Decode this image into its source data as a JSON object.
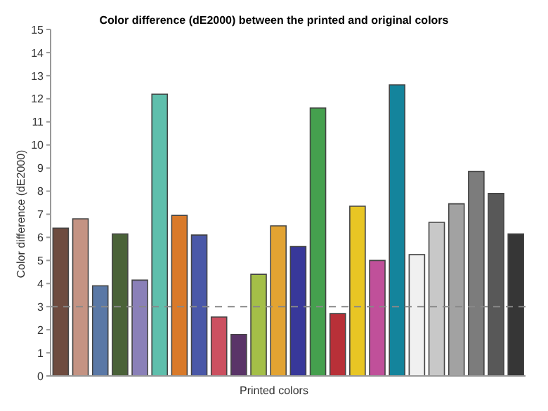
{
  "chart_data": {
    "type": "bar",
    "title": "Color difference (dE2000) between the printed and original colors",
    "xlabel": "Printed colors",
    "ylabel": "Color difference (dE2000)",
    "categories": [
      null,
      null,
      null,
      null,
      null,
      null,
      null,
      null,
      null,
      null,
      null,
      null,
      null,
      null,
      null,
      null,
      null,
      null,
      null,
      null,
      null,
      null,
      null,
      null
    ],
    "values": [
      6.4,
      6.8,
      3.9,
      6.15,
      4.15,
      12.2,
      6.95,
      6.1,
      2.55,
      1.8,
      4.4,
      6.5,
      5.6,
      11.6,
      2.7,
      7.35,
      5.0,
      12.6,
      5.25,
      6.65,
      7.45,
      8.85,
      7.9,
      6.15
    ],
    "colors": [
      "#6e4b3f",
      "#c49383",
      "#5a78a6",
      "#4a6238",
      "#8a80b8",
      "#5fbfac",
      "#d97a2a",
      "#4a58a8",
      "#cc5060",
      "#5a3468",
      "#a4bf48",
      "#e2a332",
      "#38389a",
      "#45a04e",
      "#b83038",
      "#e8c624",
      "#c0509a",
      "#14849c",
      "#f0f0f0",
      "#c8c8c8",
      "#a2a2a2",
      "#7c7c7c",
      "#585858",
      "#363636"
    ],
    "ylim": [
      0,
      15
    ],
    "yticks": [
      0,
      1,
      2,
      3,
      4,
      5,
      6,
      7,
      8,
      9,
      10,
      11,
      12,
      13,
      14,
      15
    ],
    "ref_lines": [
      {
        "axis": "y",
        "value": 3,
        "line_style": "dashed",
        "color": "#888888"
      }
    ]
  }
}
